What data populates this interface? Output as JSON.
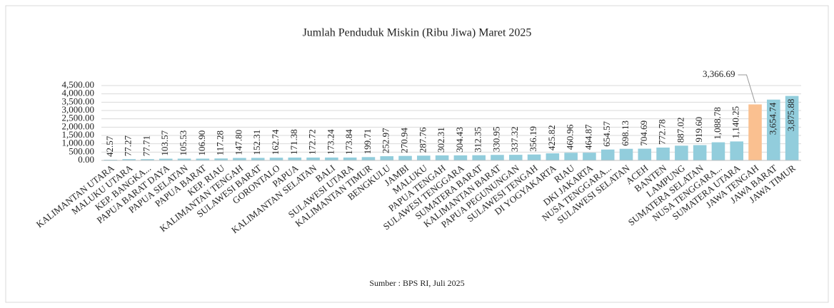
{
  "chart_data": {
    "type": "bar",
    "title": "Jumlah Penduduk Miskin (Ribu Jiwa) Maret 2025",
    "source": "Sumber : BPS RI, Juli 2025",
    "categories": [
      "KALIMANTAN UTARA",
      "MALUKU UTARA",
      "KEP. BANGKA...",
      "PAPUA BARAT DAYA",
      "PAPUA SELATAN",
      "PAPUA BARAT",
      "KEP. RIAU",
      "KALIMANTAN TENGAH",
      "SULAWESI BARAT",
      "GORONTALO",
      "PAPUA",
      "KALIMANTAN SELATAN",
      "BALI",
      "SULAWESI UTARA",
      "KALIMANTAN TIMUR",
      "BENGKULU",
      "JAMBI",
      "MALUKU",
      "PAPUA TENGAH",
      "SULAWESI TENGGARA",
      "SUMATERA BARAT",
      "KALIMANTAN BARAT",
      "PAPUA PEGUNUNGAN",
      "SULAWESI TENGAH",
      "DI YOGYAKARTA",
      "RIAU",
      "DKI JAKARTA",
      "NUSA TENGGARA...",
      "SULAWESI SELATAN",
      "ACEH",
      "BANTEN",
      "LAMPUNG",
      "SUMATERA SELATAN",
      "NUSA TENGGARA...",
      "SUMATERA UTARA",
      "JAWA TENGAH",
      "JAWA BARAT",
      "JAWA TIMUR"
    ],
    "values": [
      42.57,
      77.27,
      77.71,
      103.57,
      105.53,
      106.9,
      117.28,
      147.8,
      152.31,
      162.74,
      171.38,
      172.72,
      173.24,
      173.84,
      199.71,
      252.97,
      270.94,
      287.76,
      302.31,
      304.43,
      312.35,
      330.95,
      337.32,
      356.19,
      425.82,
      460.96,
      464.87,
      654.57,
      698.13,
      704.69,
      772.78,
      887.02,
      919.6,
      1088.78,
      1140.25,
      3366.69,
      3654.74,
      3875.88
    ],
    "value_labels": [
      "42.57",
      "77.27",
      "77.71",
      "103.57",
      "105.53",
      "106.90",
      "117.28",
      "147.80",
      "152.31",
      "162.74",
      "171.38",
      "172.72",
      "173.24",
      "173.84",
      "199.71",
      "252.97",
      "270.94",
      "287.76",
      "302.31",
      "304.43",
      "312.35",
      "330.95",
      "337.32",
      "356.19",
      "425.82",
      "460.96",
      "464.87",
      "654.57",
      "698.13",
      "704.69",
      "772.78",
      "887.02",
      "919.60",
      "1,088.78",
      "1,140.25",
      "3,366.69",
      "3,654.74",
      "3,875.88"
    ],
    "colors": [
      "#92cddc",
      "#92cddc",
      "#92cddc",
      "#92cddc",
      "#92cddc",
      "#92cddc",
      "#92cddc",
      "#92cddc",
      "#92cddc",
      "#92cddc",
      "#92cddc",
      "#92cddc",
      "#92cddc",
      "#92cddc",
      "#92cddc",
      "#92cddc",
      "#92cddc",
      "#92cddc",
      "#92cddc",
      "#92cddc",
      "#92cddc",
      "#92cddc",
      "#92cddc",
      "#92cddc",
      "#92cddc",
      "#92cddc",
      "#92cddc",
      "#92cddc",
      "#92cddc",
      "#92cddc",
      "#92cddc",
      "#92cddc",
      "#92cddc",
      "#92cddc",
      "#92cddc",
      "#fac090",
      "#92cddc",
      "#92cddc"
    ],
    "ylim": [
      0,
      4500
    ],
    "yticks": [
      {
        "value": 0,
        "label": "0.00"
      },
      {
        "value": 500,
        "label": "500.00"
      },
      {
        "value": 1000,
        "label": "1,000.00"
      },
      {
        "value": 1500,
        "label": "1,500.00"
      },
      {
        "value": 2000,
        "label": "2,000.00"
      },
      {
        "value": 2500,
        "label": "2,500.00"
      },
      {
        "value": 3000,
        "label": "3,000.00"
      },
      {
        "value": 3500,
        "label": "3,500.00"
      },
      {
        "value": 4000,
        "label": "4,000.00"
      },
      {
        "value": 4500,
        "label": "4,500.00"
      }
    ],
    "grid": true
  }
}
